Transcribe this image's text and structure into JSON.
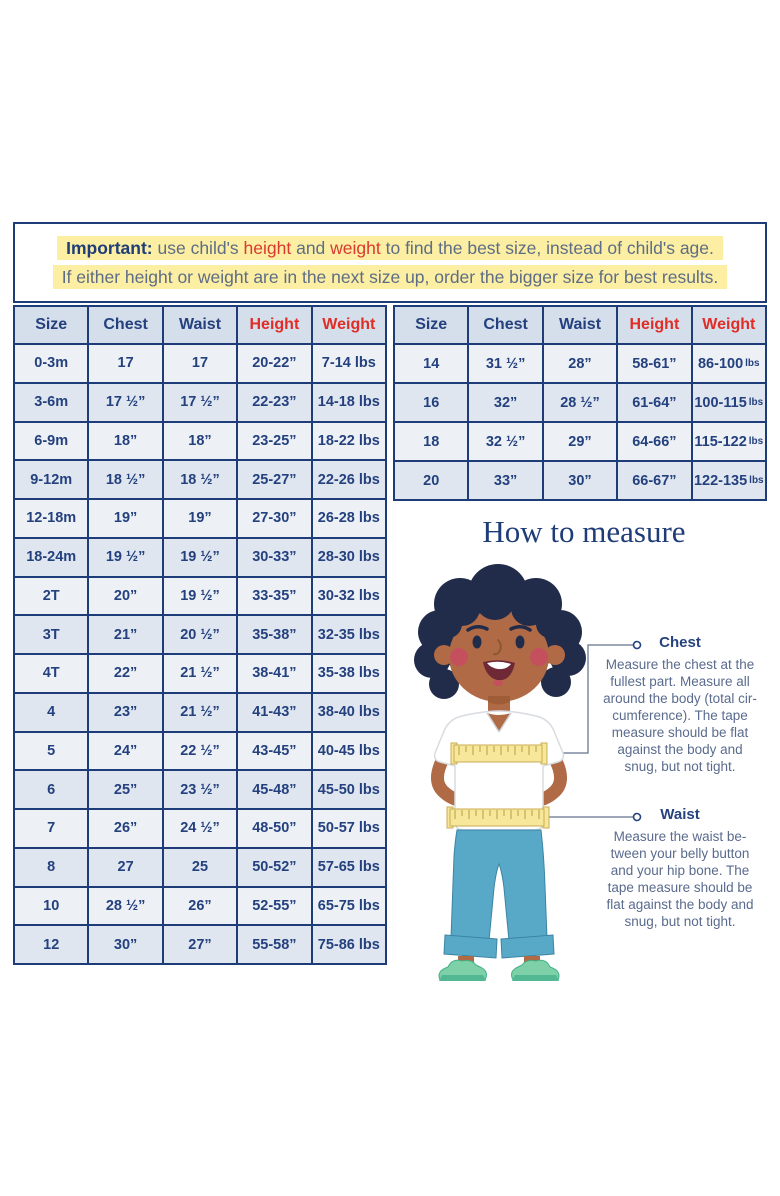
{
  "notice": {
    "line1_segments": [
      {
        "text": "Important: ",
        "style": "bold"
      },
      {
        "text": "use child's ",
        "style": "plain"
      },
      {
        "text": "height",
        "style": "red"
      },
      {
        "text": " and ",
        "style": "plain"
      },
      {
        "text": "weight",
        "style": "red"
      },
      {
        "text": " to find the best size, instead of child's age.",
        "style": "plain"
      }
    ],
    "line2": "If either height or weight are in the next size up, order the bigger size for best results."
  },
  "left_table": {
    "headers": [
      {
        "label": "Size",
        "red": false
      },
      {
        "label": "Chest",
        "red": false
      },
      {
        "label": "Waist",
        "red": false
      },
      {
        "label": "Height",
        "red": true
      },
      {
        "label": "Weight",
        "red": true
      }
    ],
    "rows": [
      [
        "0-3m",
        "17",
        "17",
        "20-22”",
        "7-14 lbs"
      ],
      [
        "3-6m",
        "17 ½”",
        "17 ½”",
        "22-23”",
        "14-18 lbs"
      ],
      [
        "6-9m",
        "18”",
        "18”",
        "23-25”",
        "18-22 lbs"
      ],
      [
        "9-12m",
        "18 ½”",
        "18 ½”",
        "25-27”",
        "22-26 lbs"
      ],
      [
        "12-18m",
        "19”",
        "19”",
        "27-30”",
        "26-28 lbs"
      ],
      [
        "18-24m",
        "19 ½”",
        "19 ½”",
        "30-33”",
        "28-30 lbs"
      ],
      [
        "2T",
        "20”",
        "19 ½”",
        "33-35”",
        "30-32 lbs"
      ],
      [
        "3T",
        "21”",
        "20 ½”",
        "35-38”",
        "32-35 lbs"
      ],
      [
        "4T",
        "22”",
        "21 ½”",
        "38-41”",
        "35-38 lbs"
      ],
      [
        "4",
        "23”",
        "21 ½”",
        "41-43”",
        "38-40 lbs"
      ],
      [
        "5",
        "24”",
        "22 ½”",
        "43-45”",
        "40-45 lbs"
      ],
      [
        "6",
        "25”",
        "23 ½”",
        "45-48”",
        "45-50 lbs"
      ],
      [
        "7",
        "26”",
        "24 ½”",
        "48-50”",
        "50-57 lbs"
      ],
      [
        "8",
        "27",
        "25",
        "50-52”",
        "57-65 lbs"
      ],
      [
        "10",
        "28 ½”",
        "26”",
        "52-55”",
        "65-75 lbs"
      ],
      [
        "12",
        "30”",
        "27”",
        "55-58”",
        "75-86 lbs"
      ]
    ]
  },
  "right_table": {
    "headers": [
      {
        "label": "Size",
        "red": false
      },
      {
        "label": "Chest",
        "red": false
      },
      {
        "label": "Waist",
        "red": false
      },
      {
        "label": "Height",
        "red": true
      },
      {
        "label": "Weight",
        "red": true
      }
    ],
    "rows": [
      [
        "14",
        "31 ½”",
        "28”",
        "58-61”",
        [
          "86-100",
          "lbs"
        ]
      ],
      [
        "16",
        "32”",
        "28 ½”",
        "61-64”",
        [
          "100-115",
          "lbs"
        ]
      ],
      [
        "18",
        "32 ½”",
        "29”",
        "64-66”",
        [
          "115-122",
          "lbs"
        ]
      ],
      [
        "20",
        "33”",
        "30”",
        "66-67”",
        [
          "122-135",
          "lbs"
        ]
      ]
    ]
  },
  "how_to_measure": {
    "title": "How to measure",
    "chest": {
      "label": "Chest",
      "lines": [
        "Measure the chest at the",
        "fullest part. Measure all",
        "around the body (total cir-",
        "cumference). The tape",
        "measure should be flat",
        "against the body and",
        "snug, but not tight."
      ]
    },
    "waist": {
      "label": "Waist",
      "lines": [
        "Measure the waist be-",
        "tween your belly button",
        "and your hip bone. The",
        "tape measure should be",
        "flat against the body and",
        "snug, but not tight."
      ]
    }
  },
  "illustration": {
    "name": "child-with-measuring-tape",
    "skin": "#b06a45",
    "hair": "#212b4a",
    "shirt": "#ffffff",
    "pants": "#58a9c8",
    "shoes": "#7ed0a8",
    "tape": "#f6e79b"
  },
  "colors": {
    "navy": "#1e3c78",
    "table_text": "#24417e",
    "red": "#e02d26",
    "highlight_yellow": "#fceea3",
    "header_bg": "#d5deeb",
    "row_light": "#edf1f6",
    "row_dark": "#dfe6f0",
    "body_text": "#5a6b8e",
    "connector": "#7d8aa0"
  }
}
